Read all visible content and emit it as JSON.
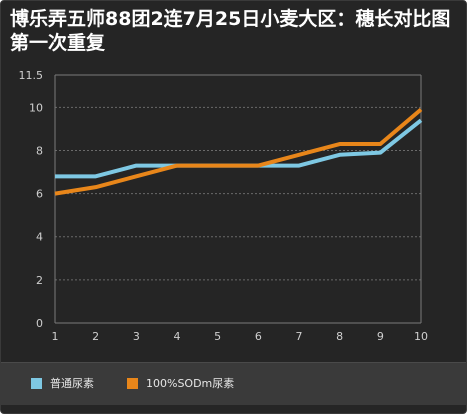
{
  "title": "博乐弄五师88团2连7月25日小麦大区：穗长对比图第一次重复",
  "chart_data": {
    "type": "line",
    "title": "博乐弄五师88团2连7月25日小麦大区：穗长对比图第一次重复",
    "xlabel": "",
    "ylabel": "",
    "categories": [
      "1",
      "2",
      "3",
      "4",
      "5",
      "6",
      "7",
      "8",
      "9",
      "10"
    ],
    "x": [
      1,
      2,
      3,
      4,
      5,
      6,
      7,
      8,
      9,
      10
    ],
    "xlim": [
      1,
      10
    ],
    "ylim": [
      0,
      11.5
    ],
    "yticks": [
      0,
      2,
      4,
      6,
      8,
      10,
      11.5
    ],
    "ytick_labels": [
      "0",
      "2",
      "4",
      "6",
      "8",
      "10",
      "11.5"
    ],
    "grid": true,
    "legend_position": "bottom",
    "series": [
      {
        "name": "普通尿素",
        "color": "#7ec8e3",
        "values": [
          6.8,
          6.8,
          7.3,
          7.3,
          7.3,
          7.3,
          7.3,
          7.8,
          7.9,
          9.4
        ]
      },
      {
        "name": "100%SODm尿素",
        "color": "#e8861a",
        "values": [
          6.0,
          6.3,
          6.8,
          7.3,
          7.3,
          7.3,
          7.8,
          8.3,
          8.3,
          9.9
        ]
      }
    ]
  }
}
